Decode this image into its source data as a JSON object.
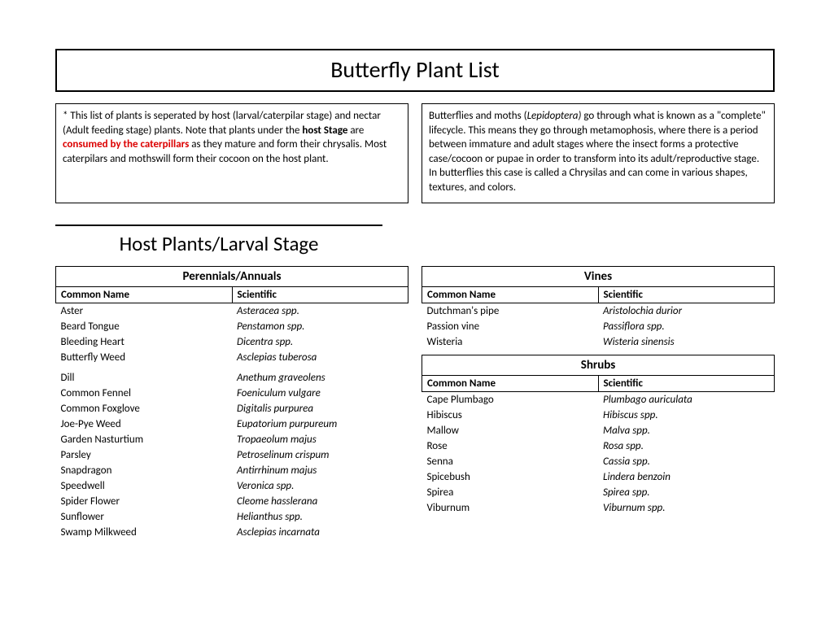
{
  "title": "Butterfly Plant List",
  "info_left": {
    "prefix": "* This list of plants is seperated by host (larval/caterpilar stage) and nectar (Adult feeding stage) plants. Note that plants under the ",
    "bold1": "host Stage",
    "mid1": " are ",
    "redbold": "consumed by the caterpillars",
    "suffix": " as they mature and form their chrysalis. Most caterpilars and mothswill form their cocoon on the host plant."
  },
  "info_right": {
    "prefix": "Butterflies and moths (",
    "italic": "Lepidoptera) ",
    "suffix": " go through what is known as a \"complete\" lifecycle. This means they go through metamophosis, where there is a period between immature and adult stages where the insect forms a protective case/cocoon or pupae in order to transform into its adult/reproductive stage. In butterflies this case is called a Chrysilas and can come in various shapes, textures, and colors."
  },
  "section_title": "Host Plants/Larval Stage",
  "column_headers": {
    "common": "Common Name",
    "scientific": "Scientific"
  },
  "tables": {
    "perennials": {
      "title": "Perennials/Annuals",
      "rows": [
        [
          "Aster",
          "Asteracea spp."
        ],
        [
          "Beard Tongue",
          "Penstamon spp."
        ],
        [
          "Bleeding Heart",
          "Dicentra spp."
        ],
        [
          "Butterfly Weed",
          "Asclepias tuberosa"
        ],
        [
          "Dill",
          "Anethum graveolens"
        ],
        [
          "Common Fennel",
          "Foeniculum vulgare"
        ],
        [
          "Common Foxglove",
          "Digitalis purpurea"
        ],
        [
          "Joe-Pye Weed",
          "Eupatorium purpureum"
        ],
        [
          "Garden Nasturtium",
          "Tropaeolum majus"
        ],
        [
          "Parsley",
          "Petroselinum crispum"
        ],
        [
          "Snapdragon",
          "Antirrhinum majus"
        ],
        [
          "Speedwell",
          "Veronica spp."
        ],
        [
          "Spider Flower",
          "Cleome hasslerana"
        ],
        [
          "Sunflower",
          "Helianthus spp."
        ],
        [
          "Swamp Milkweed",
          "Asclepias incarnata"
        ]
      ]
    },
    "vines": {
      "title": "Vines",
      "rows": [
        [
          "Dutchman's pipe",
          "Aristolochia durior"
        ],
        [
          "Passion vine",
          "Passiflora spp."
        ],
        [
          "Wisteria",
          "Wisteria sinensis"
        ]
      ]
    },
    "shrubs": {
      "title": "Shrubs",
      "rows": [
        [
          "Cape Plumbago",
          "Plumbago auriculata"
        ],
        [
          "Hibiscus",
          "Hibiscus spp."
        ],
        [
          "Mallow",
          "Malva spp."
        ],
        [
          "Rose",
          "Rosa spp."
        ],
        [
          "Senna",
          "Cassia spp."
        ],
        [
          "Spicebush",
          "Lindera benzoin"
        ],
        [
          "Spirea",
          "Spirea spp."
        ],
        [
          "Viburnum",
          "Viburnum spp."
        ]
      ]
    }
  }
}
